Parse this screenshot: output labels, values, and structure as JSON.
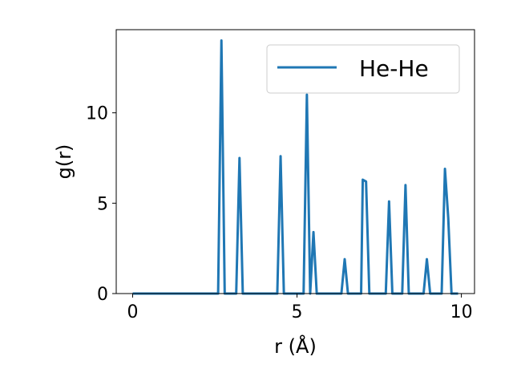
{
  "chart_data": {
    "type": "line",
    "xlabel": "r (Å)",
    "ylabel": "g(r)",
    "xlim": [
      -0.5,
      10.4
    ],
    "ylim": [
      0,
      14.6
    ],
    "xticks": [
      0,
      5,
      10
    ],
    "yticks": [
      0,
      5,
      10
    ],
    "xtick_labels": [
      "0",
      "5",
      "10"
    ],
    "ytick_labels": [
      "0",
      "5",
      "10"
    ],
    "grid": false,
    "legend_position": "top-right",
    "series": [
      {
        "name": "He-He",
        "color": "#1f77b4",
        "x": [
          0.0,
          2.6,
          2.7,
          2.8,
          3.15,
          3.25,
          3.35,
          4.4,
          4.5,
          4.6,
          5.2,
          5.3,
          5.4,
          5.5,
          5.6,
          6.35,
          6.45,
          6.55,
          6.95,
          7.0,
          7.1,
          7.2,
          7.7,
          7.8,
          7.9,
          8.2,
          8.3,
          8.4,
          8.85,
          8.95,
          9.05,
          9.4,
          9.5,
          9.6,
          9.7,
          9.9
        ],
        "y": [
          0,
          0,
          14,
          0,
          0,
          7.5,
          0,
          0,
          7.6,
          0,
          0,
          11,
          0,
          3.4,
          0,
          0,
          1.9,
          0,
          0,
          6.3,
          6.2,
          0,
          0,
          5.1,
          0,
          0,
          6.0,
          0,
          0,
          1.9,
          0,
          0,
          6.9,
          4.2,
          0,
          0
        ]
      }
    ]
  }
}
